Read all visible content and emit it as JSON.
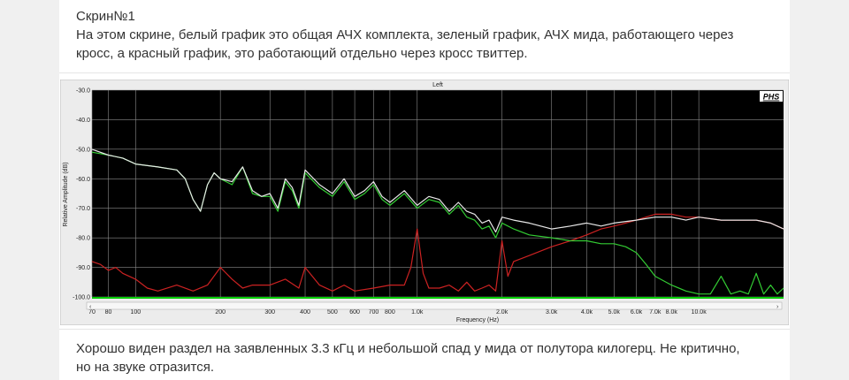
{
  "post": {
    "heading": "Скрин№1",
    "caption_top": "На этом скрине, белый график это общая АЧХ комплекта, зеленый график, АЧХ мида, работающего через кросс, а красный график, это работающий отдельно через кросс твиттер.",
    "caption_bottom": "Хорошо виден раздел на заявленных 3.3 кГц и небольшой спад у мида от полутора килогерц. Не критично, но на звуке отразится."
  },
  "chart_data": {
    "type": "line",
    "title": "Left",
    "watermark": "PHS",
    "xlabel": "Frequency (Hz)",
    "ylabel": "Relative Amplitude (dB)",
    "x_scale": "log",
    "xlim": [
      70,
      20000
    ],
    "ylim": [
      -100,
      -30
    ],
    "grid": true,
    "background": "#000000",
    "x_ticks": [
      70,
      80,
      100,
      200,
      300,
      400,
      500,
      600,
      700,
      800,
      1000,
      2000,
      3000,
      4000,
      5000,
      6000,
      7000,
      8000,
      10000
    ],
    "x_tick_labels": [
      "70",
      "80",
      "100",
      "200",
      "300",
      "400",
      "500",
      "600",
      "700",
      "800",
      "1.0k",
      "2.0k",
      "3.0k",
      "4.0k",
      "5.0k",
      "6.0k",
      "7.0k",
      "8.0k",
      "10.0k"
    ],
    "y_ticks": [
      -30,
      -40,
      -50,
      -60,
      -70,
      -80,
      -90,
      -100
    ],
    "y_tick_labels": [
      "-30.0",
      "-40.0",
      "-50.0",
      "-60.0",
      "-70.0",
      "-80.0",
      "-90.0",
      "-100.0"
    ],
    "series": [
      {
        "color": "#e8e8e8",
        "x": [
          70,
          80,
          90,
          100,
          120,
          140,
          150,
          160,
          170,
          180,
          190,
          200,
          220,
          240,
          260,
          280,
          300,
          320,
          340,
          360,
          380,
          400,
          450,
          500,
          550,
          600,
          650,
          700,
          750,
          800,
          900,
          1000,
          1100,
          1200,
          1300,
          1400,
          1500,
          1600,
          1700,
          1800,
          1900,
          2000,
          2200,
          2500,
          3000,
          3500,
          4000,
          4500,
          5000,
          6000,
          7000,
          8000,
          9000,
          10000,
          12000,
          14000,
          16000,
          18000,
          20000
        ],
        "y": [
          -50,
          -52,
          -53,
          -55,
          -56,
          -57,
          -60,
          -67,
          -71,
          -62,
          -58,
          -60,
          -61,
          -56,
          -64,
          -66,
          -65,
          -70,
          -60,
          -63,
          -69,
          -57,
          -62,
          -65,
          -60,
          -66,
          -64,
          -61,
          -66,
          -68,
          -64,
          -69,
          -66,
          -67,
          -71,
          -68,
          -71,
          -72,
          -75,
          -74,
          -78,
          -73,
          -74,
          -75,
          -77,
          -76,
          -75,
          -76,
          -75,
          -74,
          -73,
          -73,
          -74,
          -73,
          -74,
          -74,
          -74,
          -75,
          -77
        ]
      },
      {
        "color": "#33cc33",
        "x": [
          70,
          80,
          90,
          100,
          120,
          140,
          150,
          160,
          170,
          180,
          190,
          200,
          220,
          240,
          260,
          280,
          300,
          320,
          340,
          360,
          380,
          400,
          450,
          500,
          550,
          600,
          650,
          700,
          750,
          800,
          900,
          1000,
          1100,
          1200,
          1300,
          1400,
          1500,
          1600,
          1700,
          1800,
          1900,
          2000,
          2200,
          2500,
          3000,
          3500,
          4000,
          4500,
          5000,
          5500,
          6000,
          6500,
          7000,
          8000,
          9000,
          10000,
          11000,
          12000,
          13000,
          14000,
          15000,
          16000,
          17000,
          18000,
          19000,
          20000
        ],
        "y": [
          -51,
          -52,
          -53,
          -55,
          -56,
          -57,
          -60,
          -67,
          -71,
          -62,
          -58,
          -60,
          -62,
          -56,
          -65,
          -66,
          -66,
          -71,
          -61,
          -64,
          -70,
          -58,
          -63,
          -66,
          -61,
          -67,
          -65,
          -62,
          -67,
          -69,
          -65,
          -70,
          -67,
          -68,
          -72,
          -69,
          -73,
          -74,
          -77,
          -76,
          -80,
          -75,
          -77,
          -79,
          -80,
          -81,
          -81,
          -82,
          -82,
          -83,
          -85,
          -89,
          -93,
          -96,
          -98,
          -99,
          -99,
          -93,
          -99,
          -98,
          -99,
          -92,
          -99,
          -96,
          -99,
          -97
        ]
      },
      {
        "color": "#cc2222",
        "x": [
          70,
          75,
          80,
          85,
          90,
          100,
          110,
          120,
          140,
          160,
          180,
          200,
          220,
          240,
          260,
          300,
          340,
          380,
          400,
          450,
          500,
          550,
          600,
          700,
          800,
          900,
          950,
          1000,
          1050,
          1100,
          1200,
          1300,
          1400,
          1500,
          1600,
          1700,
          1800,
          1900,
          2000,
          2100,
          2200,
          2500,
          3000,
          3500,
          4000,
          4500,
          5000,
          5500,
          6000,
          7000,
          8000,
          9000,
          10000,
          12000,
          14000,
          16000,
          18000,
          20000
        ],
        "y": [
          -88,
          -89,
          -91,
          -90,
          -92,
          -94,
          -97,
          -98,
          -96,
          -98,
          -96,
          -90,
          -94,
          -97,
          -96,
          -96,
          -94,
          -97,
          -90,
          -96,
          -98,
          -96,
          -98,
          -97,
          -96,
          -96,
          -90,
          -77,
          -92,
          -97,
          -97,
          -96,
          -98,
          -95,
          -98,
          -97,
          -96,
          -98,
          -81,
          -93,
          -88,
          -86,
          -83,
          -81,
          -79,
          -77,
          -76,
          -75,
          -74,
          -72,
          -72,
          -73,
          -73,
          -74,
          -74,
          -74,
          -75,
          -77
        ]
      }
    ]
  }
}
